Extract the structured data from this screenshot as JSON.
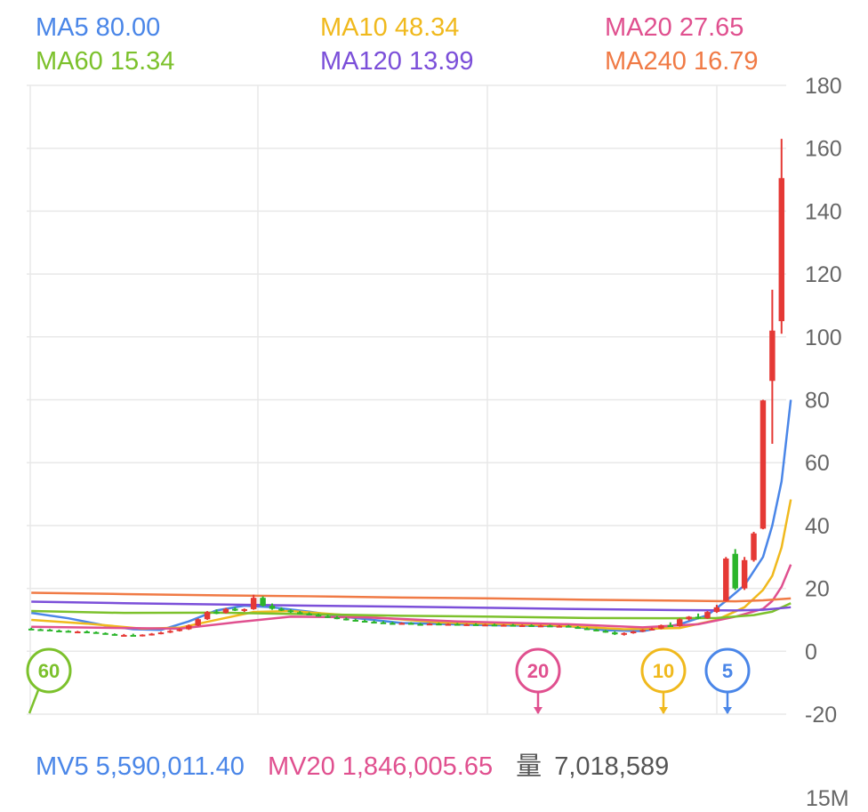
{
  "legend": [
    {
      "label": "MA5 80.00",
      "color": "#4a86e8"
    },
    {
      "label": "MA10 48.34",
      "color": "#f0b91d"
    },
    {
      "label": "MA20 27.65",
      "color": "#e0508f"
    },
    {
      "label": "MA60 15.34",
      "color": "#7cc12c"
    },
    {
      "label": "MA120 13.99",
      "color": "#7b4fd9"
    },
    {
      "label": "MA240 16.79",
      "color": "#f07a45"
    }
  ],
  "footer": {
    "mv5": "MV5 5,590,011.40",
    "mv20": "MV20 1,846,005.65",
    "volume_label": "量",
    "volume_value": "7,018,589",
    "next_axis_label": "15M"
  },
  "markers": [
    {
      "label": "60",
      "color": "#7cc12c"
    },
    {
      "label": "20",
      "color": "#e0508f"
    },
    {
      "label": "10",
      "color": "#f0b91d"
    },
    {
      "label": "5",
      "color": "#4a86e8"
    }
  ],
  "colors": {
    "up": "#e53935",
    "down": "#2bb52b",
    "grid": "#e8e8e8",
    "axis_text": "#666666"
  },
  "chart_data": {
    "type": "candlestick",
    "ylim": [
      -20,
      180
    ],
    "yticks": [
      "180",
      "160",
      "140",
      "120",
      "100",
      "80",
      "60",
      "40",
      "20",
      "0",
      "-20"
    ],
    "candles": [
      [
        7.2,
        7.5,
        6.8,
        7.0
      ],
      [
        7.0,
        7.2,
        6.6,
        6.9
      ],
      [
        6.9,
        7.1,
        6.5,
        6.6
      ],
      [
        6.6,
        6.9,
        6.3,
        6.5
      ],
      [
        6.5,
        6.7,
        6.0,
        6.2
      ],
      [
        6.2,
        6.5,
        5.9,
        6.3
      ],
      [
        6.3,
        6.6,
        6.0,
        6.1
      ],
      [
        6.1,
        6.3,
        5.7,
        5.8
      ],
      [
        5.8,
        6.0,
        5.4,
        5.5
      ],
      [
        5.5,
        5.7,
        5.0,
        5.1
      ],
      [
        5.1,
        5.5,
        4.8,
        5.2
      ],
      [
        5.2,
        5.6,
        4.9,
        5.0
      ],
      [
        5.0,
        5.4,
        4.7,
        5.3
      ],
      [
        5.3,
        5.8,
        5.0,
        5.6
      ],
      [
        5.6,
        6.2,
        5.4,
        6.0
      ],
      [
        6.0,
        6.8,
        5.8,
        6.5
      ],
      [
        6.5,
        7.3,
        6.3,
        7.0
      ],
      [
        7.0,
        8.5,
        6.8,
        8.2
      ],
      [
        8.2,
        10.5,
        8.0,
        10.2
      ],
      [
        10.2,
        12.8,
        10.0,
        12.5
      ],
      [
        12.5,
        13.3,
        11.8,
        12.2
      ],
      [
        12.2,
        13.8,
        12.0,
        13.5
      ],
      [
        13.5,
        14.0,
        12.8,
        13.0
      ],
      [
        13.0,
        13.6,
        12.5,
        13.4
      ],
      [
        13.4,
        18.0,
        13.2,
        17.0
      ],
      [
        17.0,
        17.5,
        14.2,
        14.5
      ],
      [
        14.5,
        15.2,
        13.2,
        13.5
      ],
      [
        13.5,
        14.0,
        12.8,
        13.0
      ],
      [
        13.0,
        13.4,
        12.2,
        12.4
      ],
      [
        12.4,
        12.8,
        11.8,
        12.0
      ],
      [
        12.0,
        12.4,
        11.4,
        11.6
      ],
      [
        11.6,
        12.0,
        11.0,
        11.2
      ],
      [
        11.2,
        11.6,
        10.6,
        10.8
      ],
      [
        10.8,
        11.2,
        10.2,
        10.4
      ],
      [
        10.4,
        10.8,
        9.8,
        10.0
      ],
      [
        10.0,
        10.4,
        9.5,
        9.7
      ],
      [
        9.7,
        10.1,
        9.2,
        9.4
      ],
      [
        9.4,
        9.8,
        9.0,
        9.2
      ],
      [
        9.2,
        9.6,
        8.8,
        9.0
      ],
      [
        9.0,
        9.4,
        8.6,
        8.8
      ],
      [
        8.8,
        9.2,
        8.5,
        9.0
      ],
      [
        9.0,
        9.3,
        8.6,
        8.7
      ],
      [
        8.7,
        9.1,
        8.4,
        8.6
      ],
      [
        8.6,
        9.0,
        8.3,
        8.8
      ],
      [
        8.8,
        9.1,
        8.4,
        8.5
      ],
      [
        8.5,
        8.9,
        8.2,
        8.7
      ],
      [
        8.7,
        9.0,
        8.3,
        8.4
      ],
      [
        8.4,
        8.8,
        8.1,
        8.6
      ],
      [
        8.6,
        8.9,
        8.2,
        8.3
      ],
      [
        8.3,
        8.7,
        8.0,
        8.5
      ],
      [
        8.5,
        8.8,
        8.1,
        8.2
      ],
      [
        8.2,
        8.6,
        7.9,
        8.4
      ],
      [
        8.4,
        8.7,
        8.0,
        8.1
      ],
      [
        8.1,
        8.5,
        7.8,
        8.3
      ],
      [
        8.3,
        8.6,
        7.9,
        8.0
      ],
      [
        8.0,
        8.4,
        7.7,
        8.2
      ],
      [
        8.2,
        8.5,
        7.8,
        7.9
      ],
      [
        7.9,
        8.3,
        7.6,
        8.1
      ],
      [
        8.1,
        8.4,
        7.6,
        7.7
      ],
      [
        7.7,
        8.0,
        7.2,
        7.3
      ],
      [
        7.3,
        7.6,
        6.8,
        6.9
      ],
      [
        6.9,
        7.2,
        6.4,
        6.5
      ],
      [
        6.5,
        6.8,
        5.9,
        6.0
      ],
      [
        6.0,
        6.4,
        5.2,
        5.4
      ],
      [
        5.4,
        6.0,
        5.0,
        5.8
      ],
      [
        5.8,
        6.5,
        5.6,
        6.3
      ],
      [
        6.3,
        7.0,
        6.1,
        6.8
      ],
      [
        6.8,
        7.5,
        6.6,
        7.2
      ],
      [
        7.2,
        8.5,
        7.0,
        8.3
      ],
      [
        8.3,
        9.2,
        7.9,
        8.0
      ],
      [
        8.0,
        10.5,
        7.8,
        10.2
      ],
      [
        10.2,
        11.2,
        9.8,
        11.0
      ],
      [
        11.0,
        12.0,
        10.2,
        10.5
      ],
      [
        10.5,
        12.8,
        10.3,
        12.5
      ],
      [
        12.5,
        14.8,
        12.2,
        14.0
      ],
      [
        16.0,
        30.0,
        15.8,
        29.5
      ],
      [
        31.0,
        32.5,
        19.5,
        20.0
      ],
      [
        20.0,
        30.0,
        19.5,
        29.0
      ],
      [
        29.0,
        38.0,
        28.5,
        37.5
      ],
      [
        39.0,
        80.0,
        38.8,
        79.8
      ],
      [
        86.0,
        115.0,
        66.0,
        102.0
      ],
      [
        105.0,
        163.0,
        101.0,
        150.5
      ]
    ],
    "series": [
      {
        "name": "MA5",
        "values": [
          [
            0,
            12.2
          ],
          [
            4,
            10.5
          ],
          [
            8,
            8.2
          ],
          [
            11,
            7.0
          ],
          [
            14,
            6.8
          ],
          [
            17,
            9.5
          ],
          [
            20,
            13.0
          ],
          [
            23,
            14.5
          ],
          [
            26,
            14.0
          ],
          [
            30,
            12.6
          ],
          [
            34,
            10.9
          ],
          [
            40,
            9.0
          ],
          [
            50,
            8.3
          ],
          [
            58,
            8.0
          ],
          [
            62,
            6.7
          ],
          [
            66,
            6.4
          ],
          [
            70,
            8.6
          ],
          [
            73,
            11.5
          ],
          [
            75,
            16.0
          ],
          [
            77,
            21.0
          ],
          [
            79,
            30.0
          ],
          [
            80,
            40.0
          ],
          [
            81,
            54.0
          ],
          [
            82,
            80.0
          ]
        ]
      },
      {
        "name": "MA10",
        "values": [
          [
            0,
            10.0
          ],
          [
            6,
            8.8
          ],
          [
            12,
            7.2
          ],
          [
            16,
            7.5
          ],
          [
            20,
            10.0
          ],
          [
            24,
            12.5
          ],
          [
            28,
            12.8
          ],
          [
            34,
            11.5
          ],
          [
            44,
            9.2
          ],
          [
            56,
            8.3
          ],
          [
            64,
            7.0
          ],
          [
            70,
            7.4
          ],
          [
            74,
            10.0
          ],
          [
            77,
            14.0
          ],
          [
            79,
            19.5
          ],
          [
            80,
            24.0
          ],
          [
            81,
            33.0
          ],
          [
            82,
            48.3
          ]
        ]
      },
      {
        "name": "MA20",
        "values": [
          [
            0,
            7.8
          ],
          [
            10,
            7.4
          ],
          [
            16,
            7.2
          ],
          [
            22,
            9.2
          ],
          [
            28,
            11.0
          ],
          [
            36,
            10.8
          ],
          [
            46,
            9.5
          ],
          [
            58,
            8.6
          ],
          [
            66,
            7.6
          ],
          [
            72,
            8.6
          ],
          [
            76,
            11.0
          ],
          [
            79,
            13.5
          ],
          [
            80,
            16.0
          ],
          [
            81,
            20.5
          ],
          [
            82,
            27.6
          ]
        ]
      },
      {
        "name": "MA60",
        "values": [
          [
            0,
            12.8
          ],
          [
            10,
            12.2
          ],
          [
            20,
            12.3
          ],
          [
            30,
            11.8
          ],
          [
            40,
            11.3
          ],
          [
            50,
            11.0
          ],
          [
            60,
            10.6
          ],
          [
            68,
            10.5
          ],
          [
            74,
            10.6
          ],
          [
            78,
            11.5
          ],
          [
            80,
            12.6
          ],
          [
            82,
            15.3
          ]
        ]
      },
      {
        "name": "MA120",
        "values": [
          [
            0,
            15.8
          ],
          [
            10,
            15.3
          ],
          [
            20,
            14.9
          ],
          [
            30,
            14.5
          ],
          [
            40,
            14.2
          ],
          [
            50,
            13.8
          ],
          [
            60,
            13.4
          ],
          [
            70,
            13.1
          ],
          [
            76,
            13.0
          ],
          [
            79,
            13.2
          ],
          [
            82,
            14.0
          ]
        ]
      },
      {
        "name": "MA240",
        "values": [
          [
            0,
            18.6
          ],
          [
            10,
            18.2
          ],
          [
            20,
            17.8
          ],
          [
            30,
            17.5
          ],
          [
            40,
            17.1
          ],
          [
            50,
            16.8
          ],
          [
            60,
            16.4
          ],
          [
            70,
            16.1
          ],
          [
            76,
            15.9
          ],
          [
            79,
            16.2
          ],
          [
            82,
            16.8
          ]
        ]
      }
    ]
  }
}
